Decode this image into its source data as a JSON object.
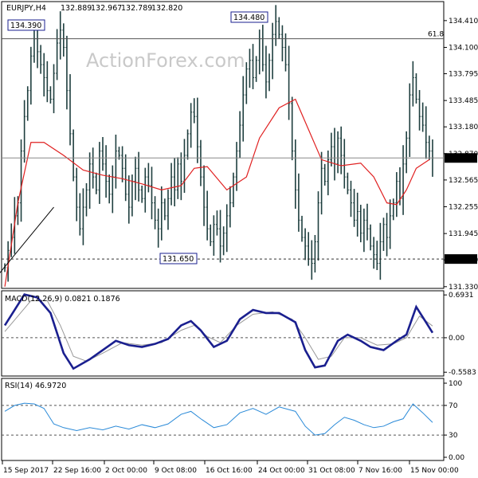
{
  "chart_data": [
    {
      "type": "ohlc",
      "title": "EURJPY,H4",
      "header_values": [
        "132.889",
        "132.967",
        "132.789",
        "132.820"
      ],
      "watermark": "ActionForex.com",
      "y_ticks": [
        "134.410",
        "134.100",
        "133.795",
        "133.485",
        "133.180",
        "132.870",
        "132.565",
        "132.255",
        "131.945",
        "131.640",
        "131.330"
      ],
      "ylim": [
        131.31,
        134.63
      ],
      "x_labels": [
        "15 Sep 2017",
        "22 Sep 16:00",
        "2 Oct 00:00",
        "9 Oct 08:00",
        "16 Oct 16:00",
        "24 Oct 00:00",
        "31 Oct 08:00",
        "7 Nov 16:00",
        "15 Nov 00:00"
      ],
      "annotations": {
        "high_1": "134.390",
        "high_2": "134.480",
        "fib_label": "61.8",
        "low": "131.650",
        "support_label": "131.650",
        "current": "132.820"
      },
      "levels": {
        "fib": 134.2,
        "support": 131.65,
        "current": 132.82
      },
      "trendline": [
        [
          -5,
          131.33
        ],
        [
          15,
          132.25
        ]
      ],
      "close": [
        131.55,
        131.75,
        131.9,
        132.15,
        132.3,
        132.9,
        133.3,
        133.6,
        134.0,
        134.2,
        134.05,
        133.9,
        133.75,
        133.6,
        133.5,
        133.8,
        134.15,
        134.3,
        134.1,
        133.6,
        133.1,
        132.6,
        132.25,
        132.0,
        132.25,
        132.45,
        132.75,
        132.6,
        132.45,
        132.9,
        132.75,
        132.55,
        132.4,
        132.6,
        132.9,
        132.85,
        132.7,
        132.4,
        132.25,
        132.55,
        132.7,
        132.45,
        132.35,
        132.6,
        132.5,
        132.3,
        132.1,
        132.0,
        132.3,
        132.15,
        132.35,
        132.6,
        132.45,
        132.75,
        132.55,
        132.85,
        133.1,
        133.35,
        133.3,
        132.95,
        132.6,
        132.25,
        132.0,
        131.85,
        132.05,
        132.0,
        131.8,
        131.95,
        132.15,
        132.3,
        132.6,
        132.9,
        133.2,
        133.55,
        133.85,
        133.95,
        133.75,
        133.95,
        134.2,
        133.9,
        133.7,
        133.95,
        134.25,
        134.4,
        134.25,
        134.1,
        133.9,
        133.45,
        132.9,
        132.45,
        132.1,
        131.9,
        131.8,
        131.65,
        131.6,
        131.85,
        132.3,
        132.7,
        132.55,
        132.8,
        132.95,
        132.75,
        133.05,
        132.85,
        132.6,
        132.45,
        132.3,
        132.1,
        132.2,
        131.95,
        132.1,
        132.0,
        131.8,
        131.7,
        131.6,
        131.85,
        132.05,
        131.9,
        132.15,
        132.3,
        132.55,
        132.35,
        132.75,
        133.05,
        133.55,
        133.75,
        133.5,
        133.3,
        133.2,
        133.0,
        132.9,
        132.82
      ],
      "ma": {
        "type": "line",
        "color": "#e02020",
        "sample_values": [
          [
            0,
            131.33
          ],
          [
            4,
            132.3
          ],
          [
            8,
            133.0
          ],
          [
            12,
            133.0
          ],
          [
            18,
            132.85
          ],
          [
            24,
            132.68
          ],
          [
            30,
            132.62
          ],
          [
            36,
            132.58
          ],
          [
            42,
            132.52
          ],
          [
            48,
            132.45
          ],
          [
            54,
            132.5
          ],
          [
            58,
            132.7
          ],
          [
            62,
            132.72
          ],
          [
            68,
            132.45
          ],
          [
            74,
            132.6
          ],
          [
            78,
            133.05
          ],
          [
            84,
            133.4
          ],
          [
            89,
            133.5
          ],
          [
            93,
            133.15
          ],
          [
            97,
            132.8
          ],
          [
            103,
            132.73
          ],
          [
            109,
            132.76
          ],
          [
            113,
            132.6
          ],
          [
            117,
            132.3
          ],
          [
            120,
            132.28
          ],
          [
            123,
            132.45
          ],
          [
            126,
            132.7
          ],
          [
            130,
            132.8
          ]
        ]
      }
    },
    {
      "type": "line",
      "title": "MACD(12,26,9) 0.0821 0.1876",
      "y_ticks": [
        "0.6931",
        "0.00",
        "-0.5583"
      ],
      "ylim": [
        -0.62,
        0.76
      ],
      "series": [
        {
          "color": "#1a1f8f",
          "values": [
            [
              0,
              0.2
            ],
            [
              3,
              0.45
            ],
            [
              6,
              0.7
            ],
            [
              10,
              0.65
            ],
            [
              14,
              0.4
            ],
            [
              18,
              -0.25
            ],
            [
              21,
              -0.5
            ],
            [
              26,
              -0.35
            ],
            [
              30,
              -0.2
            ],
            [
              34,
              -0.05
            ],
            [
              38,
              -0.12
            ],
            [
              42,
              -0.15
            ],
            [
              46,
              -0.1
            ],
            [
              50,
              -0.02
            ],
            [
              54,
              0.2
            ],
            [
              57,
              0.27
            ],
            [
              60,
              0.12
            ],
            [
              64,
              -0.15
            ],
            [
              68,
              -0.05
            ],
            [
              72,
              0.3
            ],
            [
              76,
              0.45
            ],
            [
              80,
              0.4
            ],
            [
              84,
              0.4
            ],
            [
              89,
              0.25
            ],
            [
              92,
              -0.2
            ],
            [
              95,
              -0.48
            ],
            [
              98,
              -0.45
            ],
            [
              102,
              -0.05
            ],
            [
              105,
              0.05
            ],
            [
              109,
              -0.05
            ],
            [
              112,
              -0.15
            ],
            [
              116,
              -0.2
            ],
            [
              120,
              -0.05
            ],
            [
              123,
              0.05
            ],
            [
              126,
              0.5
            ],
            [
              129,
              0.25
            ],
            [
              131,
              0.08
            ]
          ]
        },
        {
          "color": "#999999",
          "values": [
            [
              0,
              0.1
            ],
            [
              4,
              0.35
            ],
            [
              8,
              0.6
            ],
            [
              13,
              0.6
            ],
            [
              17,
              0.2
            ],
            [
              21,
              -0.3
            ],
            [
              25,
              -0.38
            ],
            [
              30,
              -0.25
            ],
            [
              36,
              -0.08
            ],
            [
              42,
              -0.12
            ],
            [
              48,
              -0.08
            ],
            [
              54,
              0.12
            ],
            [
              58,
              0.2
            ],
            [
              62,
              0.02
            ],
            [
              66,
              -0.08
            ],
            [
              71,
              0.2
            ],
            [
              76,
              0.38
            ],
            [
              82,
              0.42
            ],
            [
              88,
              0.3
            ],
            [
              92,
              0.0
            ],
            [
              96,
              -0.35
            ],
            [
              100,
              -0.3
            ],
            [
              104,
              0.0
            ],
            [
              109,
              0.0
            ],
            [
              114,
              -0.12
            ],
            [
              119,
              -0.1
            ],
            [
              123,
              0.0
            ],
            [
              127,
              0.35
            ],
            [
              131,
              0.19
            ]
          ]
        }
      ]
    },
    {
      "type": "line",
      "title": "RSI(14) 46.9720",
      "y_ticks": [
        "100",
        "70",
        "30",
        "0.00"
      ],
      "ylim": [
        0,
        100
      ],
      "series": [
        {
          "color": "#2a8ad8",
          "values": [
            [
              0,
              62
            ],
            [
              3,
              70
            ],
            [
              6,
              73
            ],
            [
              9,
              72
            ],
            [
              12,
              66
            ],
            [
              15,
              45
            ],
            [
              18,
              40
            ],
            [
              22,
              36
            ],
            [
              26,
              40
            ],
            [
              30,
              37
            ],
            [
              34,
              42
            ],
            [
              38,
              38
            ],
            [
              42,
              44
            ],
            [
              46,
              40
            ],
            [
              50,
              45
            ],
            [
              54,
              58
            ],
            [
              57,
              62
            ],
            [
              60,
              52
            ],
            [
              64,
              40
            ],
            [
              68,
              44
            ],
            [
              72,
              60
            ],
            [
              76,
              66
            ],
            [
              80,
              58
            ],
            [
              84,
              68
            ],
            [
              89,
              62
            ],
            [
              92,
              42
            ],
            [
              95,
              30
            ],
            [
              98,
              32
            ],
            [
              101,
              44
            ],
            [
              104,
              54
            ],
            [
              107,
              50
            ],
            [
              110,
              44
            ],
            [
              113,
              40
            ],
            [
              116,
              42
            ],
            [
              119,
              48
            ],
            [
              122,
              52
            ],
            [
              125,
              72
            ],
            [
              128,
              60
            ],
            [
              131,
              47
            ]
          ]
        }
      ]
    }
  ]
}
